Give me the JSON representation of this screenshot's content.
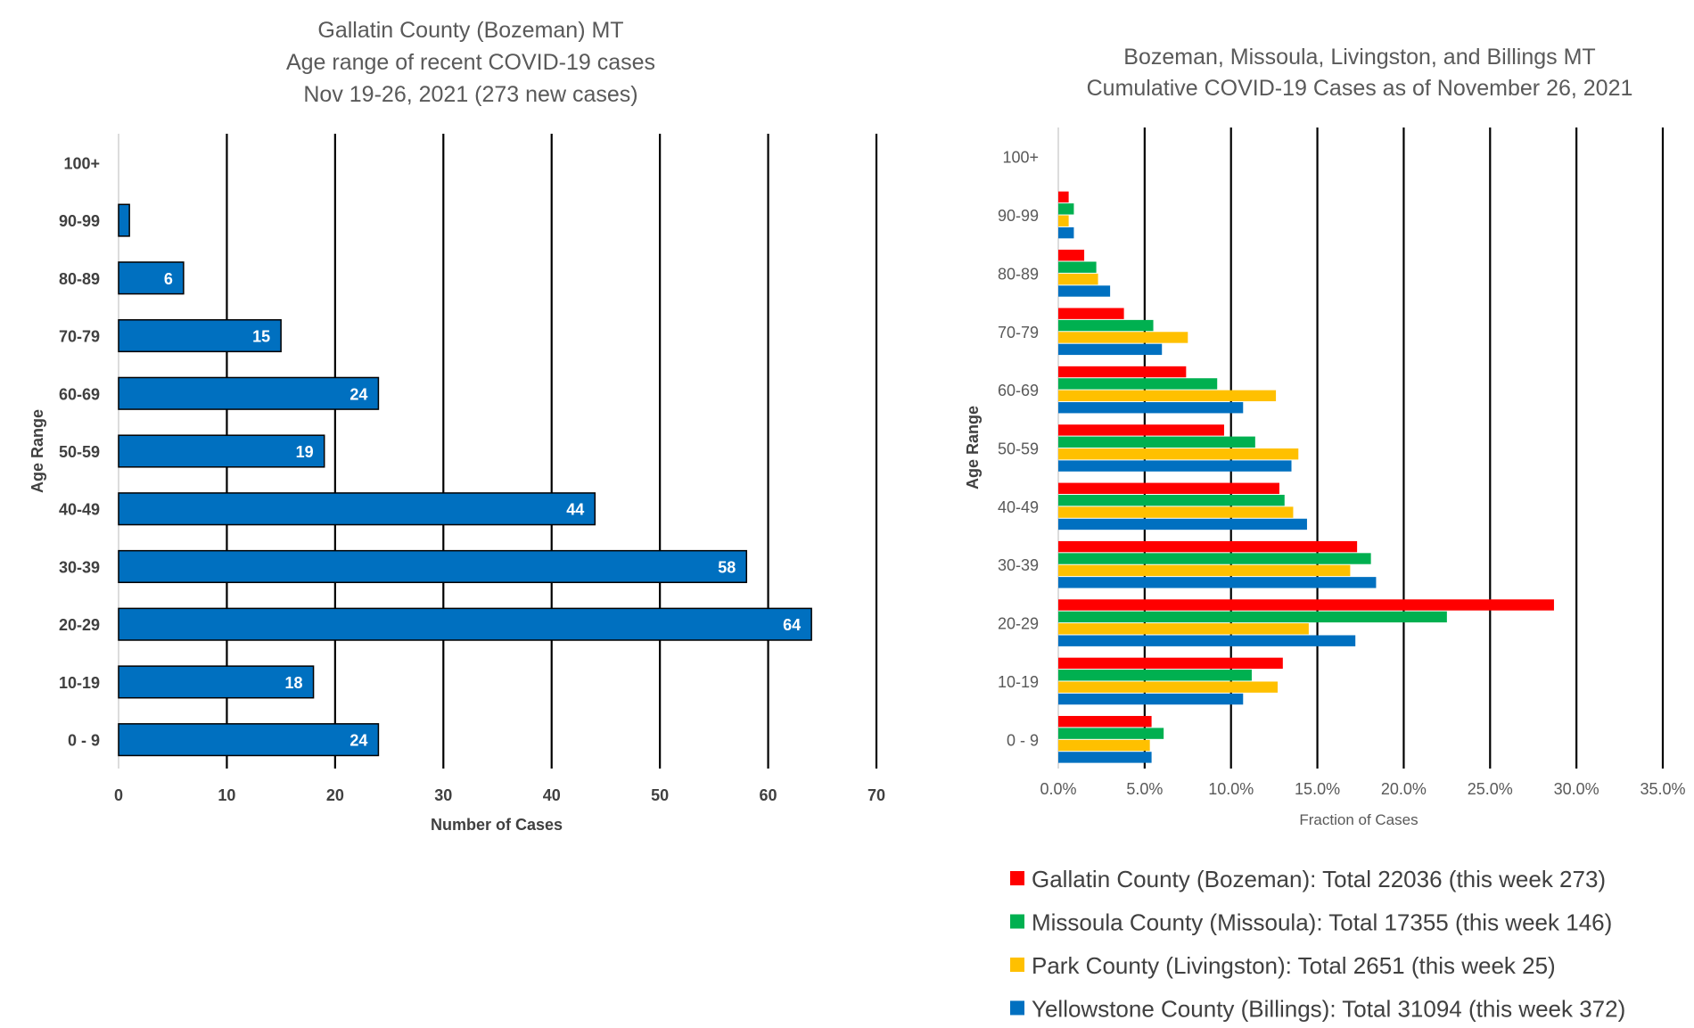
{
  "chart_data": [
    {
      "type": "bar",
      "orientation": "horizontal",
      "title_lines": [
        "Gallatin County (Bozeman) MT",
        "Age range of recent COVID-19 cases",
        "Nov 19-26, 2021 (273 new cases)"
      ],
      "categories": [
        "0 - 9",
        "10-19",
        "20-29",
        "30-39",
        "40-49",
        "50-59",
        "60-69",
        "70-79",
        "80-89",
        "90-99",
        "100+"
      ],
      "values": [
        24,
        18,
        64,
        58,
        44,
        19,
        24,
        15,
        6,
        1,
        0
      ],
      "data_labels": [
        "24",
        "18",
        "64",
        "58",
        "44",
        "19",
        "24",
        "15",
        "6",
        "",
        ""
      ],
      "xlabel": "Number of Cases",
      "ylabel": "Age Range",
      "xlim": [
        0,
        70
      ],
      "xticks": [
        "0",
        "10",
        "20",
        "30",
        "40",
        "50",
        "60",
        "70"
      ],
      "color": "#0070C0",
      "grid": "vertical"
    },
    {
      "type": "bar",
      "orientation": "horizontal",
      "title_lines": [
        "Bozeman, Missoula, Livingston, and Billings MT",
        "Cumulative COVID-19 Cases as of November 26, 2021"
      ],
      "categories": [
        "0 - 9",
        "10-19",
        "20-29",
        "30-39",
        "40-49",
        "50-59",
        "60-69",
        "70-79",
        "80-89",
        "90-99",
        "100+"
      ],
      "xlabel": "Fraction of Cases",
      "ylabel": "Age Range",
      "xlim": [
        0,
        35
      ],
      "xticks": [
        "0.0%",
        "5.0%",
        "10.0%",
        "15.0%",
        "20.0%",
        "25.0%",
        "30.0%",
        "35.0%"
      ],
      "grid": "vertical",
      "legend_position": "bottom",
      "series": [
        {
          "name": "Gallatin County (Bozeman): Total 22036 (this week 273)",
          "color": "#FF0000",
          "values": [
            5.4,
            13.0,
            28.7,
            17.3,
            12.8,
            9.6,
            7.4,
            3.8,
            1.5,
            0.6,
            0.0
          ]
        },
        {
          "name": "Missoula County (Missoula): Total 17355 (this week 146)",
          "color": "#00B050",
          "values": [
            6.1,
            11.2,
            22.5,
            18.1,
            13.1,
            11.4,
            9.2,
            5.5,
            2.2,
            0.9,
            0.0
          ]
        },
        {
          "name": "Park County (Livingston): Total 2651 (this week 25)",
          "color": "#FFC000",
          "values": [
            5.3,
            12.7,
            14.5,
            16.9,
            13.6,
            13.9,
            12.6,
            7.5,
            2.3,
            0.6,
            0.0
          ]
        },
        {
          "name": "Yellowstone County (Billings): Total 31094 (this week 372)",
          "color": "#0070C0",
          "values": [
            5.4,
            10.7,
            17.2,
            18.4,
            14.4,
            13.5,
            10.7,
            6.0,
            3.0,
            0.9,
            0.0
          ]
        }
      ]
    }
  ]
}
